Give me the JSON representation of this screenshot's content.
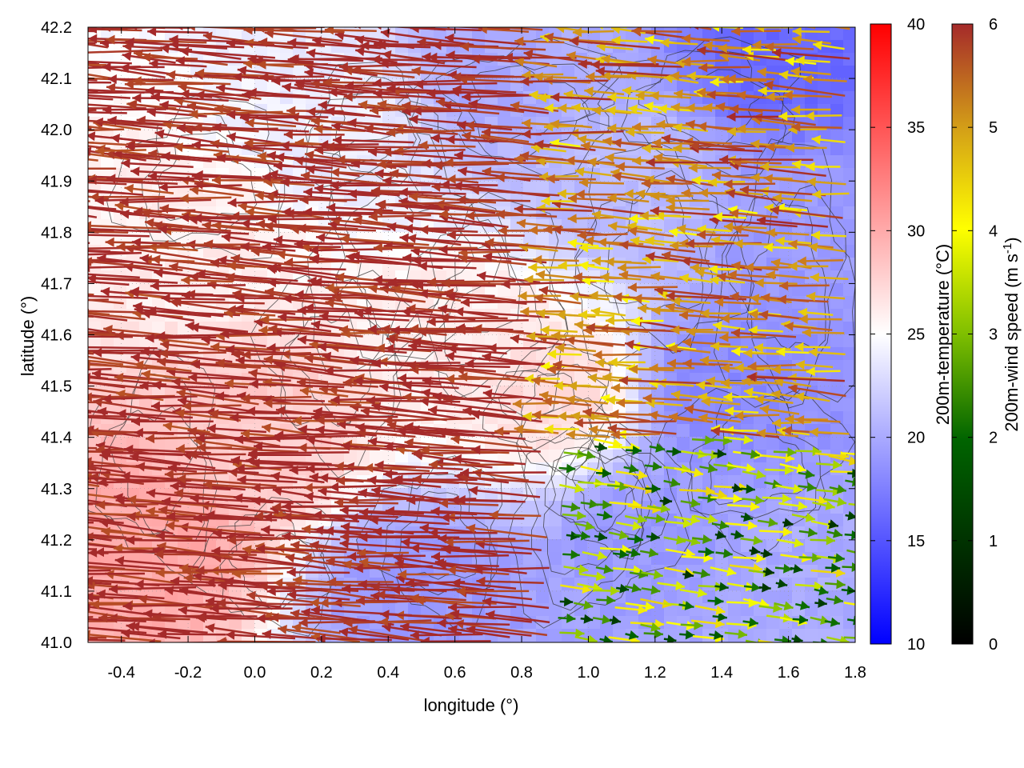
{
  "chart_data": {
    "type": "vector-field",
    "xlabel": "longitude (°)",
    "ylabel": "latitude (°)",
    "xlim": [
      -0.5,
      1.8
    ],
    "ylim": [
      41.0,
      42.2
    ],
    "x_ticks": [
      "-0.4",
      "-0.2",
      "0.0",
      "0.2",
      "0.4",
      "0.6",
      "0.8",
      "1.0",
      "1.2",
      "1.4",
      "1.6",
      "1.8"
    ],
    "y_ticks": [
      "41.0",
      "41.1",
      "41.2",
      "41.3",
      "41.4",
      "41.5",
      "41.6",
      "41.7",
      "41.8",
      "41.9",
      "42.0",
      "42.1",
      "42.2"
    ],
    "grid": true,
    "temperature_colorbar": {
      "label": "200m-temperature (°C)",
      "range": [
        10,
        40
      ],
      "ticks": [
        "10",
        "15",
        "20",
        "25",
        "30",
        "35",
        "40"
      ],
      "colors": [
        "#0000ff",
        "#ffffff",
        "#ff0000"
      ]
    },
    "wind_colorbar": {
      "label_main": "200m-wind speed (m s",
      "label_sup": "-1",
      "label_end": ")",
      "range": [
        0,
        6
      ],
      "ticks": [
        "0",
        "1",
        "2",
        "3",
        "4",
        "5",
        "6"
      ],
      "colors": [
        "#000000",
        "#006400",
        "#7fbf00",
        "#ffff00",
        "#d4a017",
        "#c87020",
        "#a52a2a"
      ]
    },
    "temperature_regions": [
      {
        "lon": -0.3,
        "lat": 41.2,
        "temp": 30
      },
      {
        "lon": 0.0,
        "lat": 41.4,
        "temp": 28
      },
      {
        "lon": -0.2,
        "lat": 41.8,
        "temp": 26
      },
      {
        "lon": 0.2,
        "lat": 42.0,
        "temp": 24
      },
      {
        "lon": 0.6,
        "lat": 41.6,
        "temp": 26
      },
      {
        "lon": 0.9,
        "lat": 41.5,
        "temp": 27
      },
      {
        "lon": 0.5,
        "lat": 41.1,
        "temp": 19
      },
      {
        "lon": 0.8,
        "lat": 42.1,
        "temp": 20
      },
      {
        "lon": 1.2,
        "lat": 41.2,
        "temp": 19
      },
      {
        "lon": 1.4,
        "lat": 41.5,
        "temp": 18
      },
      {
        "lon": 1.6,
        "lat": 42.15,
        "temp": 16
      },
      {
        "lon": 1.7,
        "lat": 41.8,
        "temp": 19
      },
      {
        "lon": 1.1,
        "lat": 41.9,
        "temp": 21
      },
      {
        "lon": 1.6,
        "lat": 41.1,
        "temp": 20
      }
    ],
    "wind_regimes": [
      {
        "lon_range": [
          -0.5,
          0.9
        ],
        "lat_range": [
          41.0,
          42.2
        ],
        "direction_deg": 190,
        "speed": 6
      },
      {
        "lon_range": [
          0.9,
          1.8
        ],
        "lat_range": [
          41.4,
          42.2
        ],
        "direction_deg": 190,
        "speed": 4.5
      },
      {
        "lon_range": [
          0.9,
          1.8
        ],
        "lat_range": [
          41.0,
          41.4
        ],
        "direction_deg": 20,
        "speed": 2
      }
    ]
  }
}
